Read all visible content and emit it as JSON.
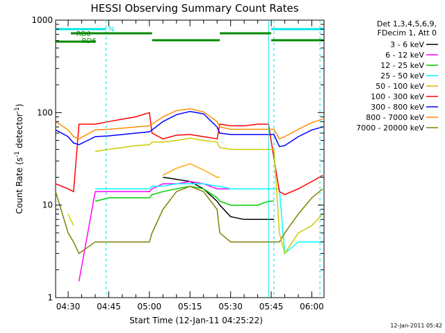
{
  "chart_data": {
    "type": "line",
    "title": "HESSI Observing Summary Count Rates",
    "xlabel": "Start Time (12-Jan-11 04:25:22)",
    "ylabel": "Count Rate (s⁻¹ detector⁻¹)",
    "ylabel_main": "Count Rate (s",
    "ylabel_sup1": "-1",
    "ylabel_mid": " detector",
    "ylabel_sup2": "-1",
    "ylabel_end": ")",
    "yscale": "log",
    "ylim": [
      1,
      1000
    ],
    "xlim": [
      "04:25:22",
      "06:04:30"
    ],
    "x_ticks": [
      "04:30",
      "04:45",
      "05:00",
      "05:15",
      "05:30",
      "05:45",
      "06:00"
    ],
    "y_ticks": [
      "1",
      "10",
      "100",
      "1000"
    ],
    "footer": "12-Jan-2011 05:42",
    "legend_header": [
      "Det 1,3,4,5,6,9,",
      "FDecim 1, Att 0"
    ],
    "legend_position": "right",
    "x_times": [
      "04:25:22",
      "04:30",
      "04:32",
      "04:34",
      "04:40",
      "04:45",
      "04:50",
      "04:55",
      "05:00",
      "05:01",
      "05:05",
      "05:10",
      "05:15",
      "05:20",
      "05:25",
      "05:26",
      "05:30",
      "05:35",
      "05:40",
      "05:44",
      "05:46",
      "05:48",
      "05:50",
      "05:55",
      "06:00",
      "06:04"
    ],
    "series": [
      {
        "name": "3 - 6 keV",
        "color": "#000000",
        "values": [
          null,
          null,
          null,
          null,
          null,
          null,
          null,
          null,
          null,
          null,
          20,
          19,
          18,
          15,
          11,
          10,
          7.5,
          7,
          7,
          7,
          7,
          null,
          null,
          null,
          null,
          null
        ]
      },
      {
        "name": "6 - 12 keV",
        "color": "#ff00ff",
        "values": [
          null,
          null,
          null,
          1.5,
          14,
          14,
          14,
          14,
          14,
          15,
          17,
          17,
          18,
          17,
          15,
          15,
          15,
          15,
          15,
          15,
          15,
          null,
          null,
          null,
          null,
          null
        ]
      },
      {
        "name": "12 - 25 keV",
        "color": "#00cc00",
        "values": [
          null,
          null,
          null,
          null,
          11,
          12,
          12,
          12,
          12,
          13,
          14,
          15,
          16,
          15,
          12,
          11,
          10,
          10,
          10,
          11,
          11,
          null,
          null,
          null,
          null,
          null
        ]
      },
      {
        "name": "25 - 50 keV",
        "color": "#00ffff",
        "values": [
          null,
          null,
          null,
          null,
          15,
          15,
          15,
          15,
          15,
          16,
          16,
          17,
          17,
          17,
          16,
          16,
          15,
          15,
          15,
          15,
          15,
          15,
          3,
          4,
          4,
          4
        ]
      },
      {
        "name": "50 - 100 keV",
        "color": "#ffa500",
        "values": [
          null,
          null,
          null,
          null,
          null,
          null,
          null,
          null,
          null,
          null,
          21,
          25,
          28,
          24,
          20,
          20,
          null,
          null,
          null,
          null,
          null,
          null,
          null,
          null,
          null,
          null
        ]
      },
      {
        "name": "100 - 300 keV",
        "color": "#ff0000",
        "values": [
          17,
          15,
          14,
          75,
          75,
          80,
          85,
          90,
          100,
          60,
          52,
          57,
          58,
          55,
          52,
          75,
          72,
          72,
          75,
          75,
          32,
          14,
          13,
          15,
          18,
          21
        ]
      },
      {
        "name": "300 - 800 keV",
        "color": "#0000ff",
        "values": [
          65,
          55,
          47,
          45,
          55,
          56,
          58,
          60,
          62,
          65,
          80,
          95,
          103,
          97,
          70,
          60,
          58,
          58,
          58,
          58,
          58,
          43,
          44,
          55,
          65,
          70
        ]
      },
      {
        "name": "800 - 7000 keV",
        "color": "#ff8c00",
        "values": [
          80,
          65,
          55,
          52,
          65,
          66,
          68,
          70,
          72,
          75,
          90,
          105,
          110,
          102,
          80,
          70,
          66,
          66,
          66,
          66,
          66,
          52,
          55,
          66,
          78,
          85
        ]
      },
      {
        "name": "7000 - 20000 keV",
        "color": "#808000",
        "values": [
          14,
          5,
          4,
          3,
          4,
          4,
          4,
          4,
          4,
          5,
          9,
          14,
          16,
          14,
          9,
          5,
          4,
          4,
          4,
          4,
          4,
          4,
          5,
          8,
          12,
          15
        ]
      },
      {
        "name": "",
        "color": "#cccc00",
        "values": [
          null,
          8,
          6,
          null,
          38,
          40,
          42,
          44,
          45,
          48,
          48,
          50,
          53,
          50,
          48,
          42,
          40,
          40,
          40,
          40,
          40,
          5,
          3,
          5,
          6,
          8
        ]
      }
    ],
    "annotations": [
      "N",
      "RD0",
      "RD6"
    ]
  }
}
